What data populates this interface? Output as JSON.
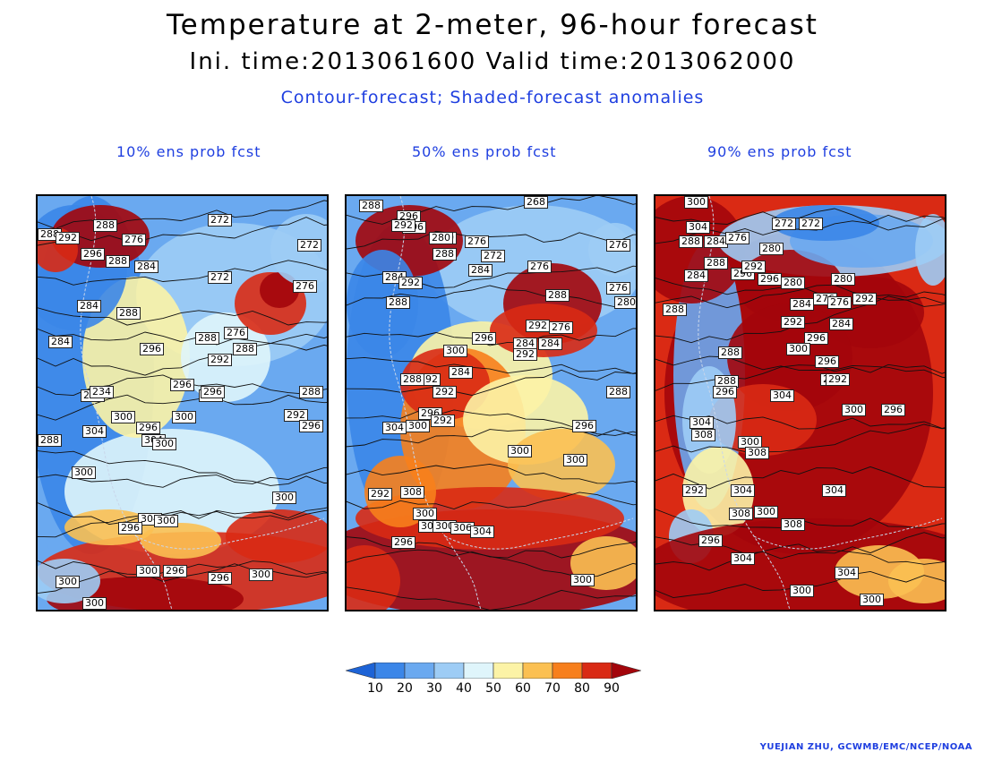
{
  "header": {
    "title": "Temperature at 2-meter, 96-hour forecast",
    "times": "Ini. time:2013061600    Valid time:2013062000",
    "subtitle": "Contour-forecast; Shaded-forecast anomalies"
  },
  "panels": [
    {
      "title": "10% ens prob fcst",
      "labels": [
        "288",
        "292",
        "288",
        "276",
        "272",
        "272",
        "296",
        "288",
        "284",
        "272",
        "276",
        "284",
        "288",
        "284",
        "276",
        "288",
        "296",
        "288",
        "292",
        "296",
        "288",
        "292",
        "296",
        "234",
        "288",
        "300",
        "304",
        "300",
        "288",
        "292",
        "296",
        "304",
        "300",
        "296",
        "300",
        "304",
        "300",
        "296",
        "300",
        "300",
        "296",
        "300",
        "300",
        "296",
        "300"
      ]
    },
    {
      "title": "50% ens prob fcst",
      "labels": [
        "288",
        "296",
        "296",
        "292",
        "300",
        "280",
        "276",
        "272",
        "268",
        "276",
        "288",
        "284",
        "284",
        "292",
        "276",
        "288",
        "276",
        "280",
        "284",
        "292",
        "288",
        "276",
        "284",
        "296",
        "292",
        "284",
        "300",
        "292",
        "288",
        "292",
        "288",
        "296",
        "292",
        "304",
        "300",
        "296",
        "300",
        "300",
        "292",
        "308",
        "300",
        "304",
        "300",
        "306",
        "296",
        "304",
        "300"
      ]
    },
    {
      "title": "90% ens prob fcst",
      "labels": [
        "300",
        "304",
        "288",
        "284",
        "276",
        "280",
        "272",
        "272",
        "288",
        "296",
        "292",
        "284",
        "296",
        "280",
        "276",
        "280",
        "292",
        "284",
        "276",
        "288",
        "284",
        "292",
        "296",
        "300",
        "288",
        "296",
        "288",
        "292",
        "296",
        "304",
        "292",
        "300",
        "296",
        "304",
        "308",
        "300",
        "308",
        "304",
        "292",
        "304",
        "308",
        "300",
        "296",
        "308",
        "304",
        "304",
        "300",
        "300"
      ]
    }
  ],
  "colorbar": {
    "ticks": [
      "10",
      "20",
      "30",
      "40",
      "50",
      "60",
      "70",
      "80",
      "90"
    ],
    "colors": [
      "#1d63d6",
      "#3b86e8",
      "#6aa9f0",
      "#9dccf5",
      "#dff5fb",
      "#fcf3a6",
      "#fbc052",
      "#f77f1c",
      "#d92a14",
      "#a3050b"
    ]
  },
  "credit": "YUEJIAN ZHU, GCWMB/EMC/NCEP/NOAA"
}
